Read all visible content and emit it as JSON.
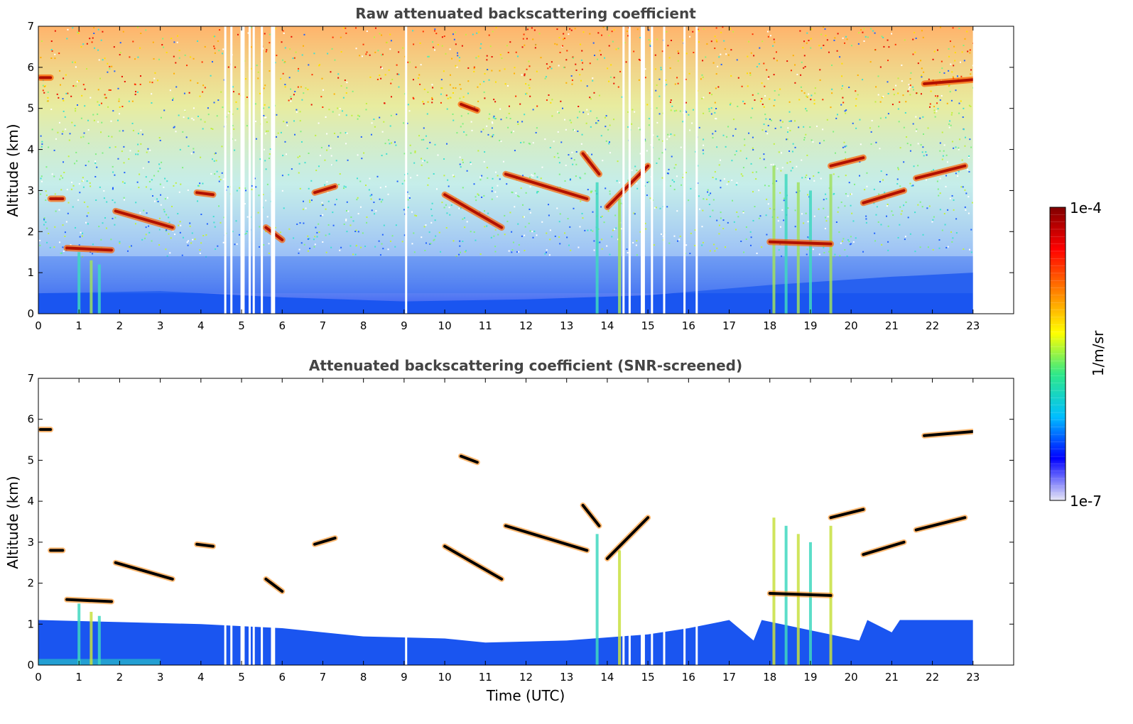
{
  "chart_data": [
    {
      "type": "heatmap",
      "title": "Raw attenuated backscattering coefficient",
      "xlabel": "",
      "ylabel": "Altitude (km)",
      "xlim": [
        0,
        24
      ],
      "ylim": [
        0,
        7
      ],
      "xticks": [
        "0",
        "1",
        "2",
        "3",
        "4",
        "5",
        "6",
        "7",
        "8",
        "9",
        "10",
        "11",
        "12",
        "13",
        "14",
        "15",
        "16",
        "17",
        "18",
        "19",
        "20",
        "21",
        "22",
        "23"
      ],
      "yticks": [
        "0",
        "1",
        "2",
        "3",
        "4",
        "5",
        "6",
        "7"
      ],
      "data_end_time": 23,
      "boundary_layer_top_km": [
        [
          0,
          0.5
        ],
        [
          3,
          0.55
        ],
        [
          6,
          0.4
        ],
        [
          9,
          0.3
        ],
        [
          12,
          0.35
        ],
        [
          15,
          0.45
        ],
        [
          18,
          0.7
        ],
        [
          21,
          0.9
        ],
        [
          23,
          1.0
        ]
      ],
      "cloud_layers": [
        {
          "t": [
            0.05,
            0.3
          ],
          "alt": [
            5.75,
            5.75
          ]
        },
        {
          "t": [
            0.3,
            0.6
          ],
          "alt": [
            2.8,
            2.8
          ]
        },
        {
          "t": [
            0.7,
            1.8
          ],
          "alt": [
            1.6,
            1.55
          ]
        },
        {
          "t": [
            1.9,
            3.3
          ],
          "alt": [
            2.5,
            2.1
          ]
        },
        {
          "t": [
            3.9,
            4.3
          ],
          "alt": [
            2.95,
            2.9
          ]
        },
        {
          "t": [
            5.6,
            6.0
          ],
          "alt": [
            2.1,
            1.8
          ]
        },
        {
          "t": [
            6.8,
            7.3
          ],
          "alt": [
            2.95,
            3.1
          ]
        },
        {
          "t": [
            10.0,
            11.4
          ],
          "alt": [
            2.9,
            2.1
          ]
        },
        {
          "t": [
            10.4,
            10.8
          ],
          "alt": [
            5.1,
            4.95
          ]
        },
        {
          "t": [
            11.5,
            13.5
          ],
          "alt": [
            3.4,
            2.8
          ]
        },
        {
          "t": [
            13.4,
            13.8
          ],
          "alt": [
            3.9,
            3.4
          ]
        },
        {
          "t": [
            14.0,
            15.0
          ],
          "alt": [
            2.6,
            3.6
          ]
        },
        {
          "t": [
            18.0,
            19.5
          ],
          "alt": [
            1.75,
            1.7
          ]
        },
        {
          "t": [
            19.5,
            20.3
          ],
          "alt": [
            3.6,
            3.8
          ]
        },
        {
          "t": [
            20.3,
            21.3
          ],
          "alt": [
            2.7,
            3.0
          ]
        },
        {
          "t": [
            21.6,
            22.8
          ],
          "alt": [
            3.3,
            3.6
          ]
        },
        {
          "t": [
            21.8,
            23.0
          ],
          "alt": [
            5.6,
            5.7
          ]
        }
      ],
      "precipitation_streaks": [
        {
          "t": 1.0,
          "top": 1.5
        },
        {
          "t": 1.3,
          "top": 1.3
        },
        {
          "t": 1.5,
          "top": 1.2
        },
        {
          "t": 18.1,
          "top": 3.6
        },
        {
          "t": 18.4,
          "top": 3.4
        },
        {
          "t": 18.7,
          "top": 3.2
        },
        {
          "t": 19.0,
          "top": 3.0
        },
        {
          "t": 19.5,
          "top": 3.4
        },
        {
          "t": 13.75,
          "top": 3.2
        },
        {
          "t": 14.3,
          "top": 2.8
        }
      ],
      "missing_data_times": [
        4.6,
        4.75,
        5.0,
        5.05,
        5.2,
        5.3,
        5.5,
        5.75,
        5.8,
        9.05,
        14.4,
        14.55,
        14.85,
        14.9,
        15.1,
        15.4,
        15.9,
        16.2
      ]
    },
    {
      "type": "heatmap",
      "title": "Attenuated backscattering coefficient (SNR-screened)",
      "xlabel": "Time (UTC)",
      "ylabel": "Altitude (km)",
      "xlim": [
        0,
        24
      ],
      "ylim": [
        0,
        7
      ],
      "xticks": [
        "0",
        "1",
        "2",
        "3",
        "4",
        "5",
        "6",
        "7",
        "8",
        "9",
        "10",
        "11",
        "12",
        "13",
        "14",
        "15",
        "16",
        "17",
        "18",
        "19",
        "20",
        "21",
        "22",
        "23"
      ],
      "yticks": [
        "0",
        "1",
        "2",
        "3",
        "4",
        "5",
        "6",
        "7"
      ],
      "data_end_time": 23,
      "aerosol_top_km": [
        [
          0,
          1.1
        ],
        [
          2,
          1.05
        ],
        [
          4,
          1.0
        ],
        [
          6,
          0.9
        ],
        [
          8,
          0.7
        ],
        [
          10,
          0.65
        ],
        [
          11,
          0.55
        ],
        [
          13,
          0.6
        ],
        [
          15,
          0.75
        ],
        [
          16,
          0.9
        ],
        [
          17,
          1.1
        ],
        [
          17.6,
          0.6
        ],
        [
          17.8,
          1.1
        ],
        [
          20.2,
          0.6
        ],
        [
          20.4,
          1.1
        ],
        [
          21,
          0.8
        ],
        [
          21.2,
          1.1
        ],
        [
          23,
          1.1
        ]
      ]
    }
  ],
  "colorbar": {
    "label": "1/m/sr",
    "max_label": "1e-4",
    "min_label": "1e-7",
    "stops": [
      "#e8e8f6",
      "#0000ff",
      "#00bfff",
      "#2ee88a",
      "#ffff00",
      "#ff8000",
      "#ff0000",
      "#800000"
    ]
  },
  "colors": {
    "cloud_core": "#b01000",
    "cloud_edge": "#ff6000",
    "screened_cloud": "#000000",
    "boundary_layer": "#1a55f0",
    "axis": "#000000"
  }
}
